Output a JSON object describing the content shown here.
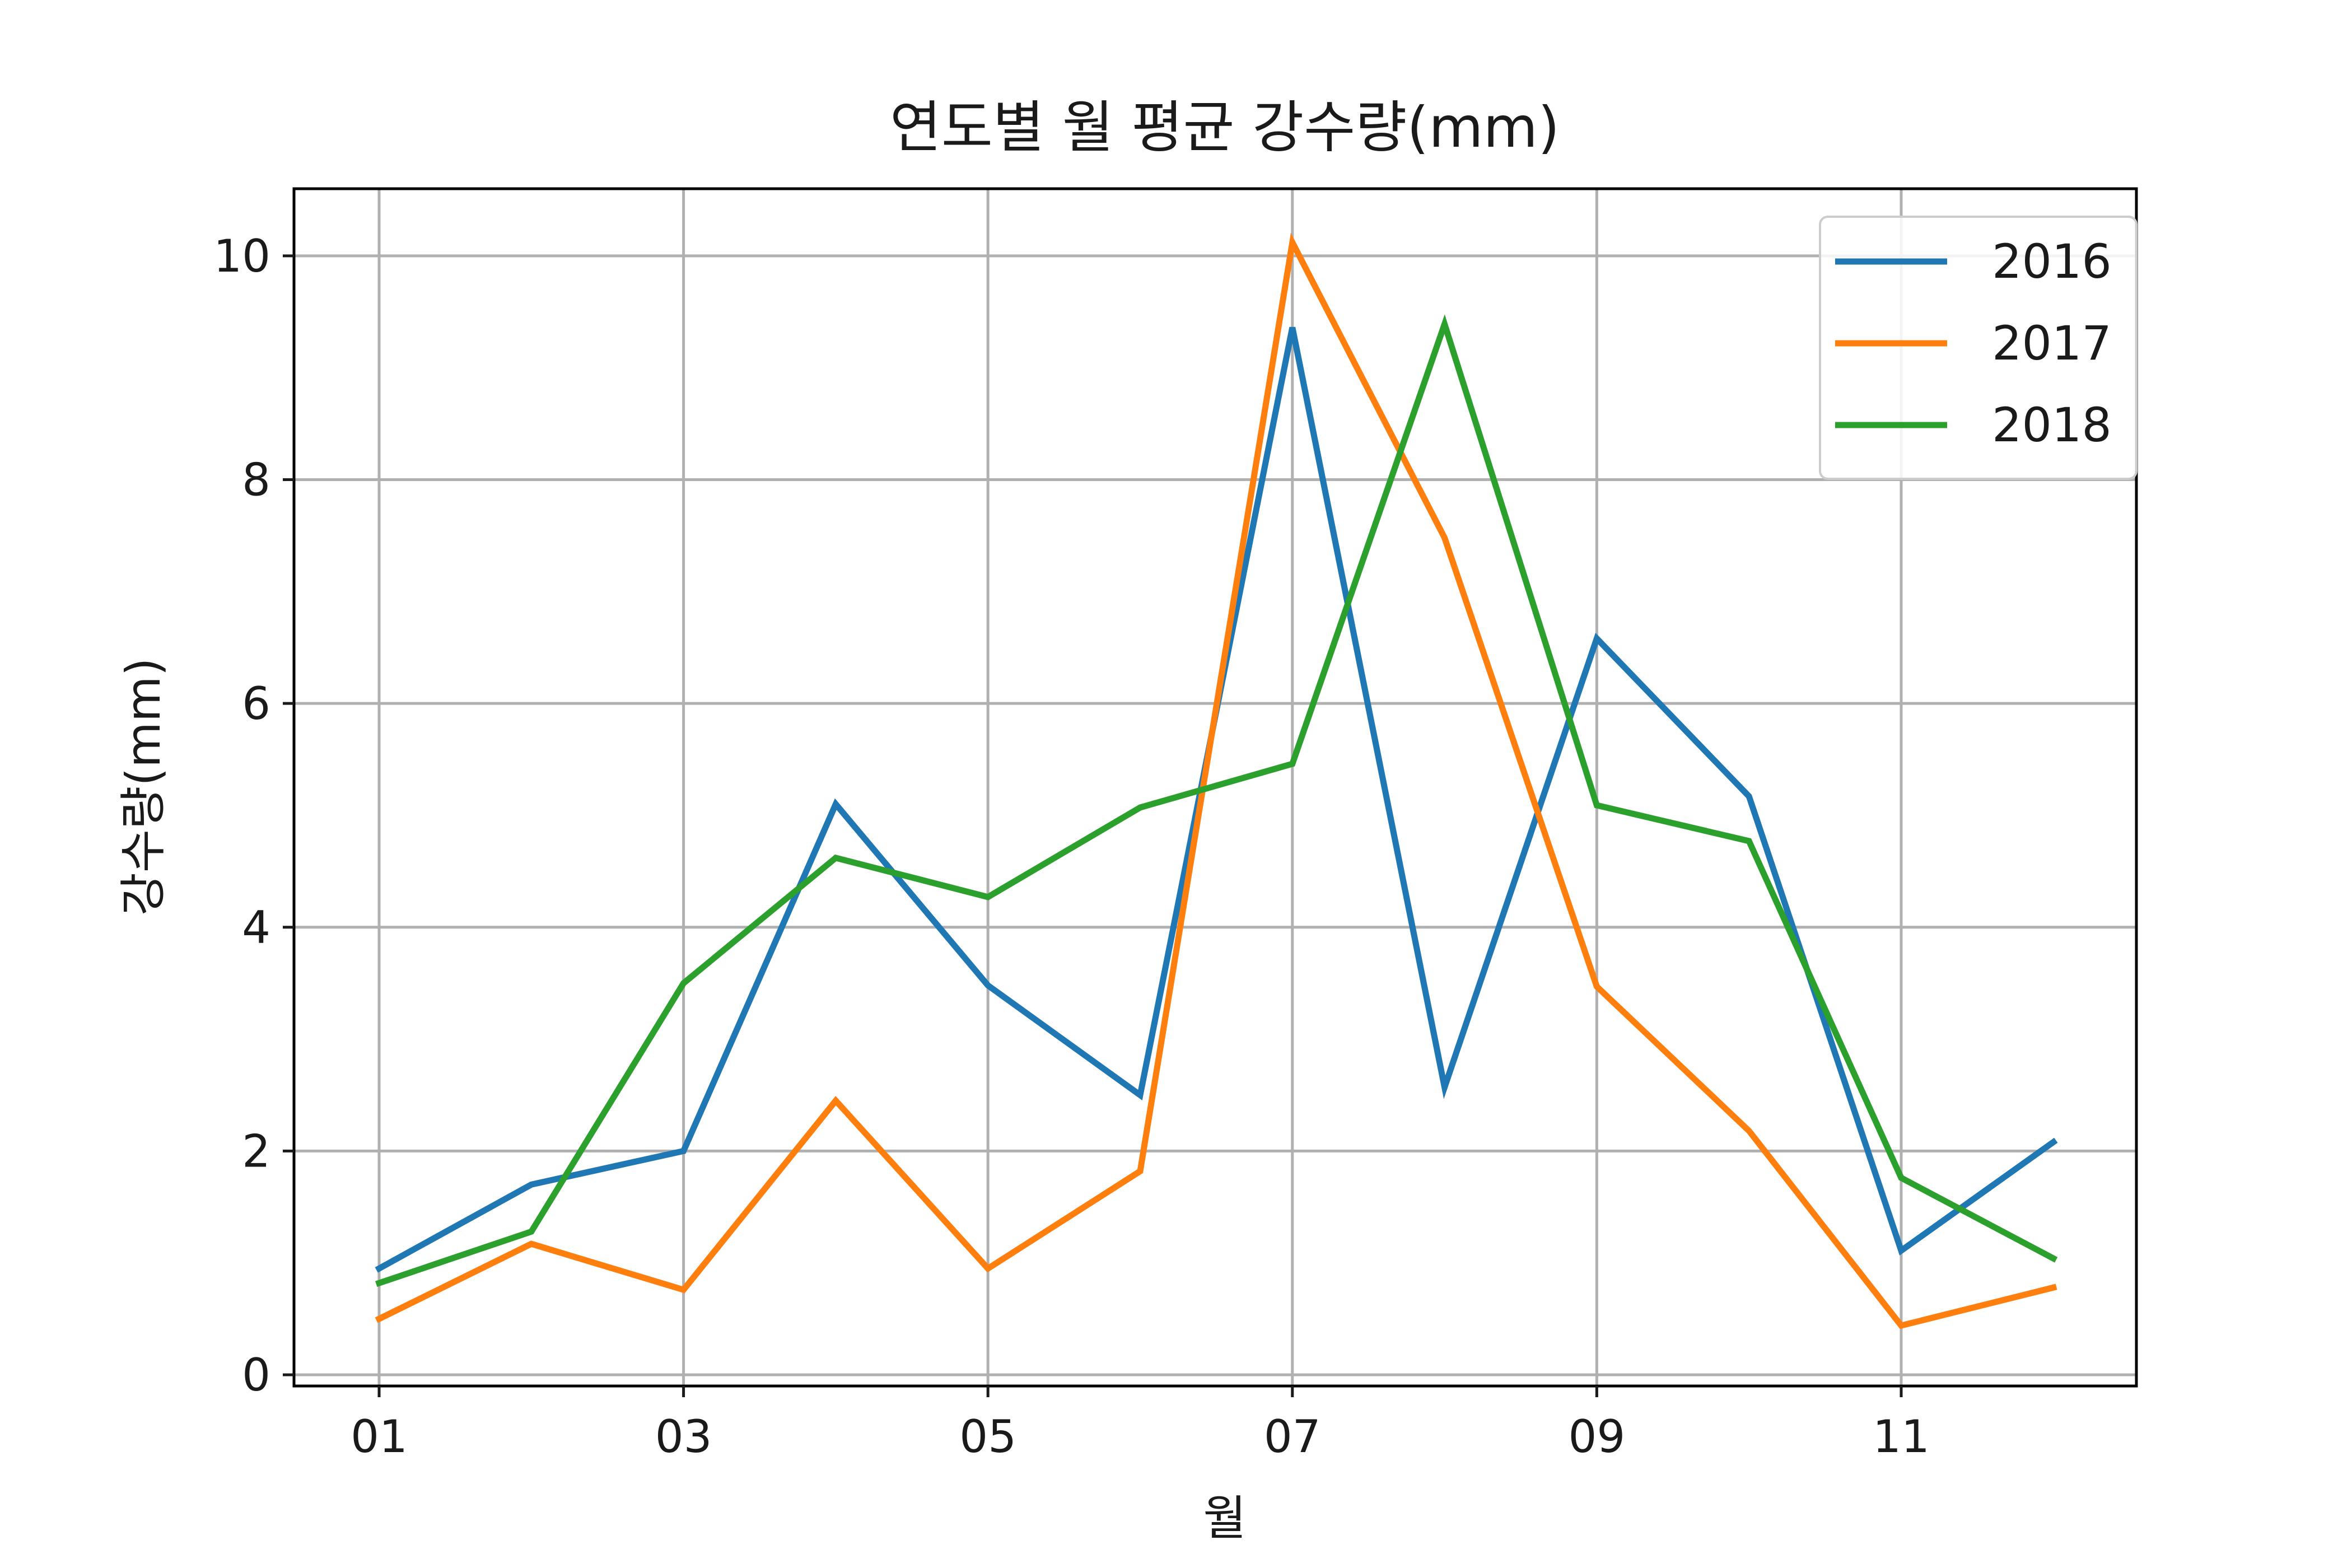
{
  "chart_data": {
    "type": "line",
    "title": "연도별 월 평균 강수량(mm)",
    "xlabel": "월",
    "ylabel": "강수량(mm)",
    "categories": [
      "01",
      "02",
      "03",
      "04",
      "05",
      "06",
      "07",
      "08",
      "09",
      "10",
      "11",
      "12"
    ],
    "x_tick_labels": [
      "01",
      "03",
      "05",
      "07",
      "09",
      "11"
    ],
    "y_ticks": [
      0,
      2,
      4,
      6,
      8,
      10
    ],
    "ylim": [
      -0.1,
      10.6
    ],
    "grid": true,
    "legend_position": "top-right",
    "series": [
      {
        "name": "2016",
        "color": "#1f77b4",
        "values": [
          0.95,
          1.7,
          2.0,
          5.1,
          3.48,
          2.5,
          9.36,
          2.57,
          6.58,
          5.17,
          1.11,
          2.08
        ]
      },
      {
        "name": "2017",
        "color": "#ff7f0e",
        "values": [
          0.5,
          1.17,
          0.76,
          2.45,
          0.95,
          1.82,
          10.12,
          7.48,
          3.47,
          2.18,
          0.44,
          0.78
        ]
      },
      {
        "name": "2018",
        "color": "#2ca02c",
        "values": [
          0.82,
          1.28,
          3.5,
          4.62,
          4.27,
          5.07,
          5.46,
          9.39,
          5.09,
          4.77,
          1.76,
          1.04
        ]
      }
    ]
  }
}
